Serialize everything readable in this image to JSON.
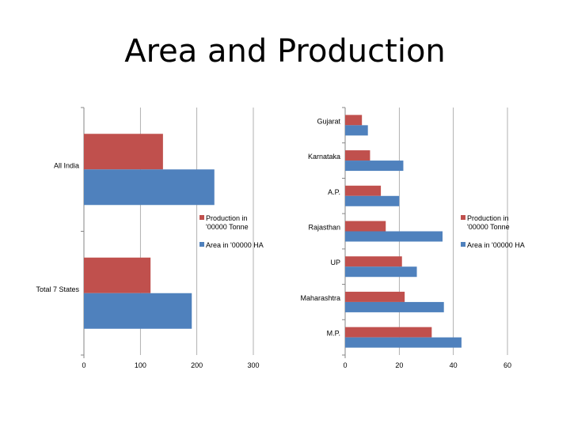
{
  "title": "Area and Production",
  "colors": {
    "production": "#C0504D",
    "area": "#4F81BD",
    "grid": "#999999",
    "axis": "#868686"
  },
  "chart_data": [
    {
      "type": "bar",
      "orientation": "horizontal",
      "categories": [
        "All India",
        "Total 7 States"
      ],
      "series": [
        {
          "name": "Production in '00000 Tonne",
          "values": [
            140,
            118
          ]
        },
        {
          "name": "Area in '00000 HA",
          "values": [
            231,
            191
          ]
        }
      ],
      "xlim": [
        0,
        300
      ],
      "xticks": [
        "0",
        "100",
        "200",
        "300"
      ],
      "grid": true,
      "legend": "right"
    },
    {
      "type": "bar",
      "orientation": "horizontal",
      "categories": [
        "Gujarat",
        "Karnataka",
        "A.P.",
        "Rajasthan",
        "UP",
        "Maharashtra",
        "M.P."
      ],
      "series": [
        {
          "name": "Production in '00000 Tonne",
          "values": [
            6.2,
            9.2,
            13.2,
            15.0,
            21.0,
            22.0,
            32.0
          ]
        },
        {
          "name": "Area in '00000 HA",
          "values": [
            8.4,
            21.5,
            20.0,
            36.0,
            26.5,
            36.5,
            43.0
          ]
        }
      ],
      "xlim": [
        0,
        60
      ],
      "xticks": [
        "0",
        "20",
        "40",
        "60"
      ],
      "grid": true,
      "legend": "right"
    }
  ]
}
